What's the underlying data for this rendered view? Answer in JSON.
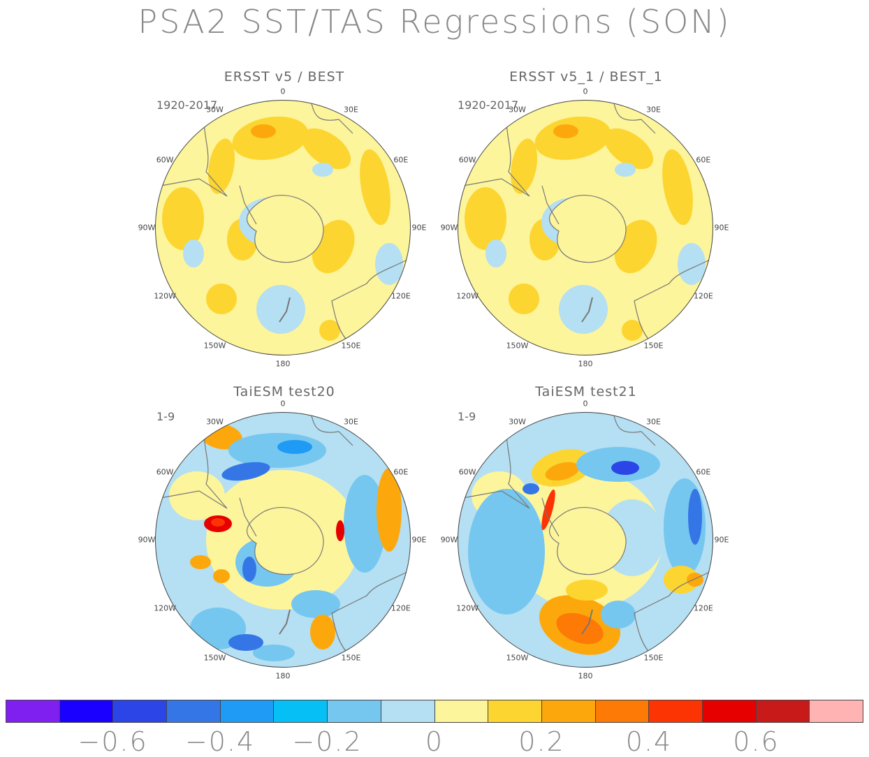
{
  "title": "PSA2 SST/TAS Regressions (SON)",
  "panels": [
    {
      "title": "ERSST v5 / BEST",
      "period": "1920-2017",
      "style": "obs"
    },
    {
      "title": "ERSST v5_1 / BEST_1",
      "period": "1920-2017",
      "style": "obs"
    },
    {
      "title": "TaiESM test20",
      "period": "1-9",
      "style": "model"
    },
    {
      "title": "TaiESM test21",
      "period": "1-9",
      "style": "model2"
    }
  ],
  "lon_labels": [
    "0",
    "30E",
    "60E",
    "90E",
    "120E",
    "150E",
    "180",
    "150W",
    "120W",
    "90W",
    "60W",
    "30W"
  ],
  "colorbar": {
    "colors": [
      "#8020f0",
      "#1a00ff",
      "#2c45e6",
      "#3576e6",
      "#1f9bf5",
      "#05bff5",
      "#75c7f0",
      "#b5dff2",
      "#fdf59b",
      "#fcd531",
      "#fca80d",
      "#fc7a05",
      "#fc3302",
      "#e60000",
      "#c91a1a",
      "#ffb3b3"
    ],
    "tick_labels": [
      "-0.6",
      "-0.4",
      "-0.2",
      "0",
      "0.2",
      "0.4",
      "0.6"
    ]
  }
}
